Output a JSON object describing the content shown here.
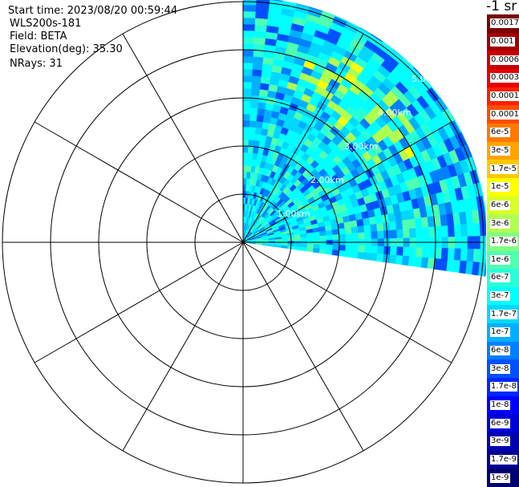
{
  "info": {
    "start_time": "Start time: 2023/08/20 00:59:44",
    "instrument": "WLS200s-181",
    "field": "Field: BETA",
    "elevation": "Elevation(deg): 35.30",
    "nrays": "NRays: 31"
  },
  "plot": {
    "range_labels": [
      "1.00km",
      "2.00km",
      "3.00km",
      "4.00km",
      "5.00km"
    ],
    "sector_start_deg_from_north": 0,
    "sector_end_deg_from_north": 98,
    "nrays": 31
  },
  "colorbar": {
    "units": "-1 sr",
    "labels": [
      "0.0017",
      "0.001",
      "0.0006",
      "0.0003",
      "0.00017",
      "0.0001",
      "6e-5",
      "3e-5",
      "1.7e-5",
      "1e-5",
      "6e-6",
      "3e-6",
      "1.7e-6",
      "1e-6",
      "6e-7",
      "3e-7",
      "1.7e-7",
      "1e-7",
      "6e-8",
      "3e-8",
      "1.7e-8",
      "1e-8",
      "6e-9",
      "3e-9",
      "1.7e-9",
      "1e-9"
    ],
    "colors": [
      "#7a0000",
      "#a00000",
      "#c80000",
      "#e60000",
      "#ff2000",
      "#ff4d00",
      "#ff7a00",
      "#ffa500",
      "#ffc800",
      "#ffff00",
      "#d8ff28",
      "#b0ff50",
      "#80ff80",
      "#50ffb0",
      "#28ffd8",
      "#00ffff",
      "#00d8ff",
      "#00b0ff",
      "#0080ff",
      "#0050ff",
      "#0028ff",
      "#0000ff",
      "#0000d8",
      "#0000b0",
      "#000090",
      "#000070"
    ]
  }
}
